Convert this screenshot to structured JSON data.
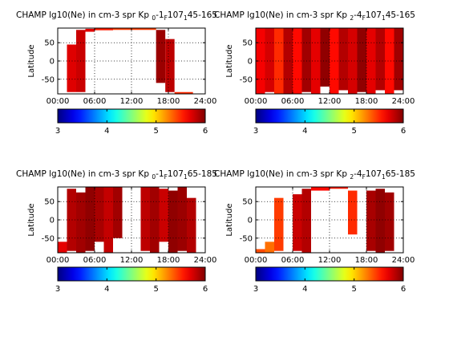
{
  "chart_data": [
    {
      "type": "heatmap",
      "title_parts": {
        "main": "CHAMP lg10(Ne) in cm-3 spr Kp",
        "kp_sub": "0",
        "kp_tail": "-1",
        "f_sub": "F",
        "f107": "107",
        "range_sub": "1",
        "range": "45-165"
      },
      "ylabel": "Latitude",
      "x_ticks": [
        "00:00",
        "06:00",
        "12:00",
        "18:00",
        "24:00"
      ],
      "y_ticks": [
        "50",
        "0",
        "-50"
      ],
      "colorbar_ticks": [
        "3",
        "4",
        "5",
        "6"
      ],
      "colorbar_range": [
        3,
        6
      ],
      "xlim": [
        0,
        24
      ],
      "ylim": [
        -90,
        90
      ],
      "bands": [
        {
          "t0": 1.5,
          "t1": 3.0,
          "lat0": -85,
          "lat1": 45,
          "value": 5.72
        },
        {
          "t0": 3.0,
          "t1": 4.5,
          "lat0": -85,
          "lat1": 85,
          "value": 5.78
        },
        {
          "t0": 4.5,
          "t1": 6.0,
          "lat0": 80,
          "lat1": 88,
          "value": 5.7
        },
        {
          "t0": 6.0,
          "t1": 9.0,
          "lat0": 84,
          "lat1": 89,
          "value": 5.55
        },
        {
          "t0": 9.0,
          "t1": 16.0,
          "lat0": 85,
          "lat1": 90,
          "value": 5.45
        },
        {
          "t0": 16.0,
          "t1": 17.5,
          "lat0": -60,
          "lat1": 85,
          "value": 5.92
        },
        {
          "t0": 17.5,
          "t1": 19.0,
          "lat0": -85,
          "lat1": 60,
          "value": 5.82
        },
        {
          "t0": 19.0,
          "t1": 22.0,
          "lat0": -90,
          "lat1": -85,
          "value": 5.5
        }
      ]
    },
    {
      "type": "heatmap",
      "title_parts": {
        "main": "CHAMP lg10(Ne) in cm-3 spr Kp",
        "kp_sub": "2",
        "kp_tail": "-4",
        "f_sub": "F",
        "f107": "107",
        "range_sub": "1",
        "range": "45-165"
      },
      "ylabel": "Latitude",
      "x_ticks": [
        "00:00",
        "06:00",
        "12:00",
        "18:00",
        "24:00"
      ],
      "y_ticks": [
        "50",
        "0",
        "-50"
      ],
      "colorbar_ticks": [
        "3",
        "4",
        "5",
        "6"
      ],
      "colorbar_range": [
        3,
        6
      ],
      "xlim": [
        0,
        24
      ],
      "ylim": [
        -90,
        90
      ],
      "bands": [
        {
          "t0": 0.0,
          "t1": 1.5,
          "lat0": -90,
          "lat1": 90,
          "value": 5.65
        },
        {
          "t0": 1.5,
          "t1": 3.0,
          "lat0": -85,
          "lat1": 90,
          "value": 5.75
        },
        {
          "t0": 3.0,
          "t1": 4.5,
          "lat0": -90,
          "lat1": 90,
          "value": 5.5
        },
        {
          "t0": 4.5,
          "t1": 6.0,
          "lat0": -90,
          "lat1": 90,
          "value": 5.85
        },
        {
          "t0": 6.0,
          "t1": 7.5,
          "lat0": -90,
          "lat1": 90,
          "value": 5.6
        },
        {
          "t0": 7.5,
          "t1": 9.0,
          "lat0": -85,
          "lat1": 90,
          "value": 5.9
        },
        {
          "t0": 9.0,
          "t1": 10.5,
          "lat0": -90,
          "lat1": 90,
          "value": 5.7
        },
        {
          "t0": 10.5,
          "t1": 12.0,
          "lat0": -70,
          "lat1": 90,
          "value": 5.95
        },
        {
          "t0": 12.0,
          "t1": 13.5,
          "lat0": -90,
          "lat1": 90,
          "value": 5.6
        },
        {
          "t0": 13.5,
          "t1": 15.0,
          "lat0": -80,
          "lat1": 90,
          "value": 5.85
        },
        {
          "t0": 15.0,
          "t1": 16.5,
          "lat0": -90,
          "lat1": 90,
          "value": 5.75
        },
        {
          "t0": 16.5,
          "t1": 18.0,
          "lat0": -85,
          "lat1": 90,
          "value": 5.95
        },
        {
          "t0": 18.0,
          "t1": 19.5,
          "lat0": -90,
          "lat1": 90,
          "value": 5.7
        },
        {
          "t0": 19.5,
          "t1": 21.0,
          "lat0": -80,
          "lat1": 90,
          "value": 5.85
        },
        {
          "t0": 21.0,
          "t1": 22.5,
          "lat0": -90,
          "lat1": 90,
          "value": 5.6
        },
        {
          "t0": 22.5,
          "t1": 24.0,
          "lat0": -80,
          "lat1": 90,
          "value": 5.9
        }
      ]
    },
    {
      "type": "heatmap",
      "title_parts": {
        "main": "CHAMP lg10(Ne) in cm-3 spr Kp",
        "kp_sub": "0",
        "kp_tail": "-1",
        "f_sub": "F",
        "f107": "107",
        "range_sub": "1",
        "range": "65-185"
      },
      "ylabel": "Latitude",
      "x_ticks": [
        "00:00",
        "06:00",
        "12:00",
        "18:00",
        "24:00"
      ],
      "y_ticks": [
        "50",
        "0",
        "-50"
      ],
      "colorbar_ticks": [
        "3",
        "4",
        "5",
        "6"
      ],
      "colorbar_range": [
        3,
        6
      ],
      "xlim": [
        0,
        24
      ],
      "ylim": [
        -90,
        90
      ],
      "bands": [
        {
          "t0": 0.0,
          "t1": 1.5,
          "lat0": -90,
          "lat1": -60,
          "value": 5.7
        },
        {
          "t0": 1.5,
          "t1": 3.0,
          "lat0": -85,
          "lat1": 85,
          "value": 5.85
        },
        {
          "t0": 3.0,
          "t1": 4.5,
          "lat0": -90,
          "lat1": 75,
          "value": 5.9
        },
        {
          "t0": 4.5,
          "t1": 6.0,
          "lat0": -85,
          "lat1": 90,
          "value": 5.95
        },
        {
          "t0": 6.0,
          "t1": 7.5,
          "lat0": -60,
          "lat1": 90,
          "value": 5.88
        },
        {
          "t0": 7.5,
          "t1": 9.0,
          "lat0": -90,
          "lat1": 90,
          "value": 5.8
        },
        {
          "t0": 9.0,
          "t1": 10.5,
          "lat0": -50,
          "lat1": 90,
          "value": 5.9
        },
        {
          "t0": 13.5,
          "t1": 15.0,
          "lat0": -85,
          "lat1": 90,
          "value": 5.82
        },
        {
          "t0": 15.0,
          "t1": 16.5,
          "lat0": -90,
          "lat1": 90,
          "value": 5.9
        },
        {
          "t0": 16.5,
          "t1": 18.0,
          "lat0": -60,
          "lat1": 85,
          "value": 5.78
        },
        {
          "t0": 18.0,
          "t1": 19.5,
          "lat0": -90,
          "lat1": 80,
          "value": 5.95
        },
        {
          "t0": 19.5,
          "t1": 21.0,
          "lat0": -85,
          "lat1": 90,
          "value": 5.92
        },
        {
          "t0": 21.0,
          "t1": 22.5,
          "lat0": -90,
          "lat1": 60,
          "value": 5.85
        }
      ]
    },
    {
      "type": "heatmap",
      "title_parts": {
        "main": "CHAMP lg10(Ne) in cm-3 spr Kp",
        "kp_sub": "2",
        "kp_tail": "-4",
        "f_sub": "F",
        "f107": "107",
        "range_sub": "1",
        "range": "65-185"
      },
      "ylabel": "Latitude",
      "x_ticks": [
        "00:00",
        "06:00",
        "12:00",
        "18:00",
        "24:00"
      ],
      "y_ticks": [
        "50",
        "0",
        "-50"
      ],
      "colorbar_ticks": [
        "3",
        "4",
        "5",
        "6"
      ],
      "colorbar_range": [
        3,
        6
      ],
      "xlim": [
        0,
        24
      ],
      "ylim": [
        -90,
        90
      ],
      "bands": [
        {
          "t0": 0.0,
          "t1": 1.5,
          "lat0": -90,
          "lat1": -80,
          "value": 5.4
        },
        {
          "t0": 1.5,
          "t1": 3.0,
          "lat0": -90,
          "lat1": -60,
          "value": 5.3
        },
        {
          "t0": 3.0,
          "t1": 4.5,
          "lat0": -85,
          "lat1": 60,
          "value": 5.45
        },
        {
          "t0": 6.0,
          "t1": 7.5,
          "lat0": -85,
          "lat1": 70,
          "value": 5.78
        },
        {
          "t0": 7.5,
          "t1": 9.0,
          "lat0": -90,
          "lat1": 85,
          "value": 5.85
        },
        {
          "t0": 9.0,
          "t1": 12.0,
          "lat0": 80,
          "lat1": 90,
          "value": 5.6
        },
        {
          "t0": 12.0,
          "t1": 15.0,
          "lat0": 85,
          "lat1": 90,
          "value": 5.55
        },
        {
          "t0": 15.0,
          "t1": 16.5,
          "lat0": -40,
          "lat1": 80,
          "value": 5.5
        },
        {
          "t0": 18.0,
          "t1": 19.5,
          "lat0": -85,
          "lat1": 80,
          "value": 5.88
        },
        {
          "t0": 19.5,
          "t1": 21.0,
          "lat0": -90,
          "lat1": 85,
          "value": 5.95
        },
        {
          "t0": 21.0,
          "t1": 22.5,
          "lat0": -85,
          "lat1": 75,
          "value": 5.9
        }
      ]
    }
  ]
}
